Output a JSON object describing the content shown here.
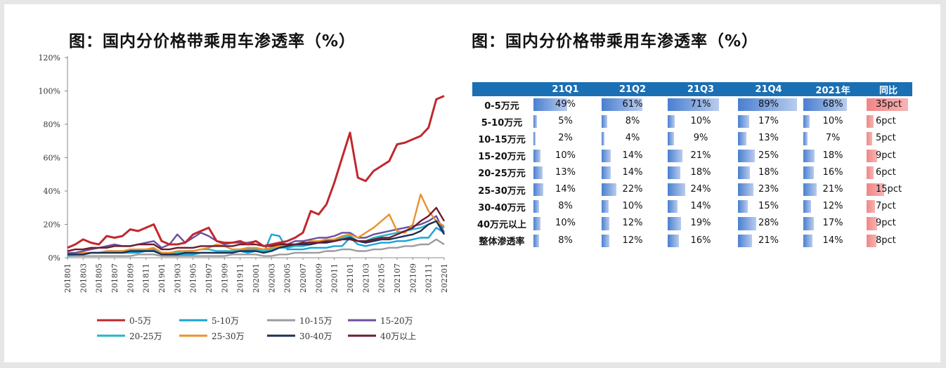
{
  "titles": {
    "left": "图：国内分价格带乘用车渗透率（%）",
    "right": "图：国内分价格带乘用车渗透率（%）"
  },
  "chart_data": [
    {
      "type": "line",
      "title": "图：国内分价格带乘用车渗透率（%）",
      "xlabel": "",
      "ylabel": "",
      "ylim": [
        0,
        120
      ],
      "y_ticks": [
        "0%",
        "20%",
        "40%",
        "60%",
        "80%",
        "100%",
        "120%"
      ],
      "x": [
        "201801",
        "201802",
        "201803",
        "201804",
        "201805",
        "201806",
        "201807",
        "201808",
        "201809",
        "201810",
        "201811",
        "201812",
        "201901",
        "201902",
        "201903",
        "201904",
        "201905",
        "201906",
        "201907",
        "201908",
        "201909",
        "201910",
        "201911",
        "201912",
        "202001",
        "202002",
        "202003",
        "202004",
        "202005",
        "202006",
        "202007",
        "202008",
        "202009",
        "202010",
        "202011",
        "202012",
        "202101",
        "202102",
        "202103",
        "202104",
        "202105",
        "202106",
        "202107",
        "202108",
        "202109",
        "202110",
        "202111",
        "202112",
        "202201"
      ],
      "x_tick_labels": [
        "201801",
        "201803",
        "201805",
        "201807",
        "201809",
        "201811",
        "201901",
        "201903",
        "201905",
        "201907",
        "201909",
        "201911",
        "202001",
        "202003",
        "202005",
        "202007",
        "202009",
        "202011",
        "202101",
        "202103",
        "202105",
        "202107",
        "202109",
        "202111",
        "202201"
      ],
      "legend_position": "bottom",
      "series": [
        {
          "name": "0-5万",
          "color": "#c0282d",
          "values": [
            6,
            8,
            11,
            9,
            8,
            13,
            12,
            13,
            17,
            16,
            18,
            20,
            10,
            8,
            8,
            9,
            14,
            16,
            18,
            10,
            9,
            9,
            10,
            8,
            10,
            7,
            8,
            9,
            10,
            12,
            15,
            28,
            26,
            32,
            45,
            60,
            75,
            48,
            46,
            52,
            55,
            58,
            68,
            69,
            71,
            73,
            78,
            95,
            97
          ]
        },
        {
          "name": "5-10万",
          "color": "#1aa3d5",
          "values": [
            2,
            2,
            2,
            3,
            3,
            4,
            4,
            3,
            3,
            3,
            4,
            4,
            2,
            2,
            2,
            2,
            2,
            3,
            3,
            3,
            3,
            3,
            4,
            3,
            4,
            3,
            14,
            13,
            5,
            5,
            5,
            6,
            6,
            6,
            7,
            7,
            12,
            8,
            7,
            8,
            9,
            9,
            10,
            10,
            11,
            12,
            12,
            18,
            15
          ]
        },
        {
          "name": "10-15万",
          "color": "#9c9ca0",
          "values": [
            1,
            1,
            1,
            1,
            1,
            1,
            1,
            1,
            1,
            2,
            2,
            2,
            1,
            1,
            1,
            1,
            1,
            1,
            1,
            1,
            1,
            2,
            2,
            2,
            2,
            1,
            1,
            2,
            2,
            3,
            3,
            3,
            3,
            4,
            4,
            5,
            5,
            4,
            4,
            5,
            5,
            6,
            6,
            7,
            7,
            8,
            8,
            11,
            8
          ]
        },
        {
          "name": "15-20万",
          "color": "#6b4fa0",
          "values": [
            3,
            3,
            4,
            5,
            6,
            7,
            8,
            7,
            7,
            8,
            9,
            10,
            6,
            8,
            14,
            9,
            12,
            15,
            13,
            10,
            8,
            9,
            9,
            9,
            10,
            7,
            8,
            9,
            8,
            10,
            10,
            11,
            12,
            12,
            13,
            15,
            15,
            12,
            12,
            14,
            15,
            16,
            17,
            18,
            19,
            20,
            22,
            25,
            15
          ]
        },
        {
          "name": "20-25万",
          "color": "#21b5c9",
          "values": [
            1,
            2,
            2,
            3,
            3,
            3,
            4,
            4,
            4,
            4,
            5,
            5,
            3,
            3,
            3,
            4,
            4,
            5,
            5,
            4,
            4,
            4,
            5,
            5,
            5,
            4,
            5,
            6,
            6,
            7,
            7,
            8,
            9,
            9,
            10,
            12,
            13,
            10,
            10,
            12,
            13,
            14,
            15,
            16,
            17,
            18,
            20,
            22,
            18
          ]
        },
        {
          "name": "25-30万",
          "color": "#e8922e",
          "values": [
            2,
            2,
            3,
            3,
            3,
            4,
            4,
            4,
            5,
            5,
            5,
            6,
            3,
            3,
            4,
            4,
            4,
            5,
            6,
            8,
            7,
            5,
            5,
            6,
            6,
            5,
            6,
            7,
            7,
            8,
            8,
            10,
            10,
            11,
            11,
            13,
            14,
            12,
            15,
            18,
            22,
            26,
            16,
            15,
            20,
            38,
            28,
            22,
            19
          ]
        },
        {
          "name": "30-40万",
          "color": "#1d2f52",
          "values": [
            2,
            2,
            2,
            3,
            3,
            3,
            3,
            3,
            4,
            4,
            4,
            4,
            2,
            2,
            2,
            3,
            3,
            3,
            3,
            3,
            3,
            3,
            4,
            4,
            4,
            3,
            4,
            6,
            7,
            8,
            8,
            8,
            9,
            9,
            10,
            11,
            12,
            10,
            9,
            10,
            11,
            11,
            12,
            13,
            14,
            16,
            20,
            22,
            14
          ]
        },
        {
          "name": "40万以上",
          "color": "#6e1a2c",
          "values": [
            4,
            5,
            5,
            6,
            6,
            6,
            7,
            7,
            7,
            8,
            8,
            8,
            5,
            5,
            6,
            6,
            6,
            7,
            7,
            7,
            7,
            7,
            8,
            8,
            8,
            7,
            7,
            8,
            8,
            8,
            9,
            9,
            9,
            10,
            10,
            11,
            11,
            10,
            10,
            11,
            12,
            12,
            14,
            16,
            18,
            22,
            25,
            30,
            22
          ]
        }
      ]
    },
    {
      "type": "table",
      "title": "图：国内分价格带乘用车渗透率（%）",
      "columns": [
        "",
        "21Q1",
        "21Q2",
        "21Q3",
        "21Q4",
        "2021年",
        "同比"
      ],
      "rows": [
        {
          "label": "0-5万元",
          "values": [
            "49%",
            "61%",
            "71%",
            "89%",
            "68%"
          ],
          "yoy": "35pct",
          "nums": [
            49,
            61,
            71,
            89,
            68
          ],
          "yoy_num": 35
        },
        {
          "label": "5-10万元",
          "values": [
            "5%",
            "8%",
            "10%",
            "17%",
            "10%"
          ],
          "yoy": "6pct",
          "nums": [
            5,
            8,
            10,
            17,
            10
          ],
          "yoy_num": 6
        },
        {
          "label": "10-15万元",
          "values": [
            "2%",
            "4%",
            "9%",
            "13%",
            "7%"
          ],
          "yoy": "5pct",
          "nums": [
            2,
            4,
            9,
            13,
            7
          ],
          "yoy_num": 5
        },
        {
          "label": "15-20万元",
          "values": [
            "10%",
            "14%",
            "21%",
            "25%",
            "18%"
          ],
          "yoy": "9pct",
          "nums": [
            10,
            14,
            21,
            25,
            18
          ],
          "yoy_num": 9
        },
        {
          "label": "20-25万元",
          "values": [
            "13%",
            "14%",
            "18%",
            "18%",
            "16%"
          ],
          "yoy": "6pct",
          "nums": [
            13,
            14,
            18,
            18,
            16
          ],
          "yoy_num": 6
        },
        {
          "label": "25-30万元",
          "values": [
            "14%",
            "22%",
            "24%",
            "23%",
            "21%"
          ],
          "yoy": "15pct",
          "nums": [
            14,
            22,
            24,
            23,
            21
          ],
          "yoy_num": 15
        },
        {
          "label": "30-40万元",
          "values": [
            "8%",
            "10%",
            "14%",
            "15%",
            "12%"
          ],
          "yoy": "7pct",
          "nums": [
            8,
            10,
            14,
            15,
            12
          ],
          "yoy_num": 7
        },
        {
          "label": "40万元以上",
          "values": [
            "10%",
            "12%",
            "19%",
            "28%",
            "17%"
          ],
          "yoy": "9pct",
          "nums": [
            10,
            12,
            19,
            28,
            17
          ],
          "yoy_num": 9
        },
        {
          "label": "整体渗透率",
          "values": [
            "8%",
            "12%",
            "16%",
            "21%",
            "14%"
          ],
          "yoy": "8pct",
          "nums": [
            8,
            12,
            16,
            21,
            14
          ],
          "yoy_num": 8
        }
      ]
    }
  ]
}
